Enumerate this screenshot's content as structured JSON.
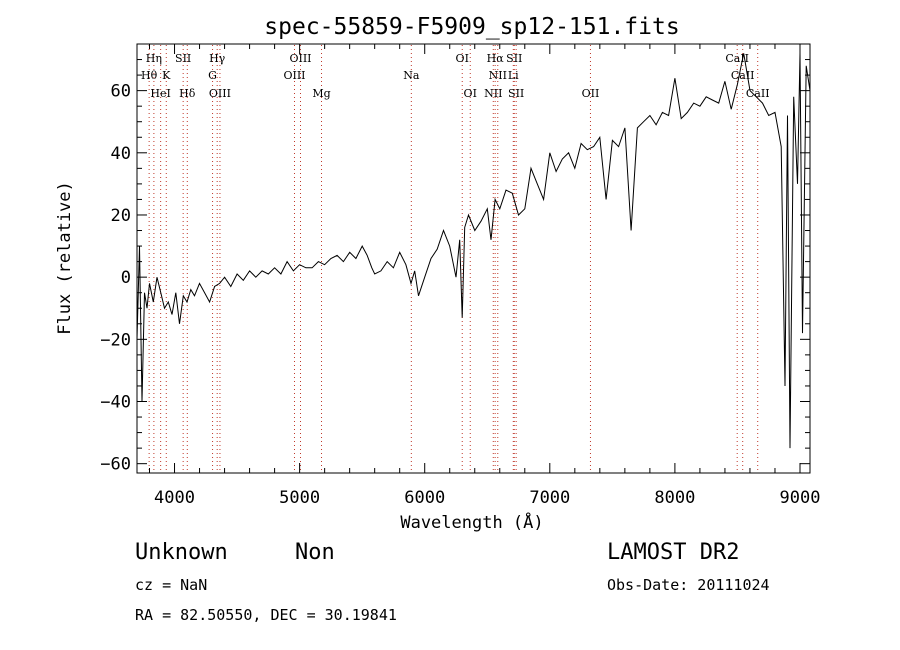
{
  "chart_data": {
    "type": "line",
    "title": "spec-55859-F5909_sp12-151.fits",
    "xlabel": "Wavelength (Å)",
    "ylabel": "Flux (relative)",
    "xlim": [
      3700,
      9080
    ],
    "ylim": [
      -63,
      75
    ],
    "x_ticks": [
      4000,
      5000,
      6000,
      7000,
      8000,
      9000
    ],
    "y_ticks": [
      -60,
      -40,
      -20,
      0,
      20,
      40,
      60
    ],
    "grid": false,
    "series": [
      {
        "x": [
          3700,
          3720,
          3740,
          3760,
          3780,
          3800,
          3830,
          3860,
          3890,
          3920,
          3950,
          3980,
          4010,
          4040,
          4070,
          4100,
          4130,
          4160,
          4200,
          4240,
          4280,
          4320,
          4360,
          4400,
          4450,
          4500,
          4550,
          4600,
          4650,
          4700,
          4750,
          4800,
          4850,
          4900,
          4950,
          5000,
          5050,
          5100,
          5150,
          5200,
          5250,
          5300,
          5350,
          5400,
          5450,
          5500,
          5540,
          5577,
          5600,
          5650,
          5700,
          5750,
          5800,
          5850,
          5890,
          5920,
          5950,
          6000,
          6050,
          6100,
          6150,
          6200,
          6250,
          6280,
          6300,
          6320,
          6350,
          6400,
          6450,
          6500,
          6530,
          6563,
          6600,
          6650,
          6700,
          6750,
          6800,
          6850,
          6900,
          6950,
          7000,
          7050,
          7100,
          7150,
          7200,
          7250,
          7300,
          7350,
          7400,
          7450,
          7500,
          7550,
          7600,
          7650,
          7700,
          7750,
          7800,
          7850,
          7900,
          7950,
          8000,
          8050,
          8100,
          8150,
          8200,
          8250,
          8300,
          8350,
          8400,
          8450,
          8500,
          8550,
          8600,
          8650,
          8700,
          8750,
          8800,
          8850,
          8880,
          8900,
          8920,
          8950,
          8980,
          9000,
          9020,
          9050,
          9080
        ],
        "y": [
          -20,
          10,
          -40,
          -5,
          -10,
          -2,
          -8,
          0,
          -5,
          -10,
          -8,
          -12,
          -5,
          -15,
          -6,
          -8,
          -4,
          -6,
          -2,
          -5,
          -8,
          -3,
          -2,
          0,
          -3,
          1,
          -1,
          2,
          0,
          2,
          1,
          3,
          1,
          5,
          2,
          4,
          3,
          3,
          5,
          4,
          6,
          7,
          5,
          8,
          6,
          10,
          7,
          3,
          1,
          2,
          5,
          3,
          8,
          4,
          -2,
          2,
          -6,
          0,
          6,
          9,
          15,
          10,
          0,
          12,
          -13,
          16,
          20,
          15,
          18,
          22,
          12,
          25,
          22,
          28,
          27,
          20,
          22,
          35,
          30,
          25,
          40,
          34,
          38,
          40,
          35,
          43,
          41,
          42,
          45,
          25,
          44,
          42,
          48,
          15,
          48,
          50,
          52,
          49,
          53,
          52,
          64,
          51,
          53,
          56,
          55,
          58,
          57,
          56,
          63,
          54,
          62,
          72,
          60,
          58,
          56,
          52,
          53,
          42,
          -35,
          52,
          -55,
          58,
          30,
          72,
          -18,
          68,
          60
        ]
      }
    ],
    "lines": [
      {
        "label": "Hη",
        "wavelength": 3835,
        "row": 1
      },
      {
        "label": "Hθ",
        "wavelength": 3797,
        "row": 2
      },
      {
        "label": "K",
        "wavelength": 3934,
        "row": 2
      },
      {
        "label": "HeI",
        "wavelength": 3889,
        "row": 3
      },
      {
        "label": "SII",
        "wavelength": 4069,
        "row": 1
      },
      {
        "label": "Hδ",
        "wavelength": 4102,
        "row": 3
      },
      {
        "label": "Hγ",
        "wavelength": 4341,
        "row": 1
      },
      {
        "label": "G",
        "wavelength": 4304,
        "row": 2
      },
      {
        "label": "OIII",
        "wavelength": 4363,
        "row": 3
      },
      {
        "label": "OIII",
        "wavelength": 5007,
        "row": 1
      },
      {
        "label": "OIII",
        "wavelength": 4959,
        "row": 2
      },
      {
        "label": "Mg",
        "wavelength": 5175,
        "row": 3
      },
      {
        "label": "Na",
        "wavelength": 5893,
        "row": 2
      },
      {
        "label": "OI",
        "wavelength": 6300,
        "row": 1
      },
      {
        "label": "OI",
        "wavelength": 6364,
        "row": 3
      },
      {
        "label": "Hα",
        "wavelength": 6563,
        "row": 1
      },
      {
        "label": "SII",
        "wavelength": 6716,
        "row": 1
      },
      {
        "label": "NII",
        "wavelength": 6584,
        "row": 2
      },
      {
        "label": "Li",
        "wavelength": 6708,
        "row": 2
      },
      {
        "label": "NII",
        "wavelength": 6548,
        "row": 3
      },
      {
        "label": "SII",
        "wavelength": 6731,
        "row": 3
      },
      {
        "label": "OII",
        "wavelength": 7325,
        "row": 3
      },
      {
        "label": "CaII",
        "wavelength": 8498,
        "row": 1
      },
      {
        "label": "CaII",
        "wavelength": 8542,
        "row": 2
      },
      {
        "label": "CaII",
        "wavelength": 8662,
        "row": 3
      }
    ]
  },
  "info": {
    "classification": "Unknown",
    "subclass": "Non",
    "survey": "LAMOST DR2",
    "cz": "cz = NaN",
    "obs_date": "Obs-Date: 20111024",
    "coords": "RA =  82.50550, DEC =  30.19841"
  }
}
